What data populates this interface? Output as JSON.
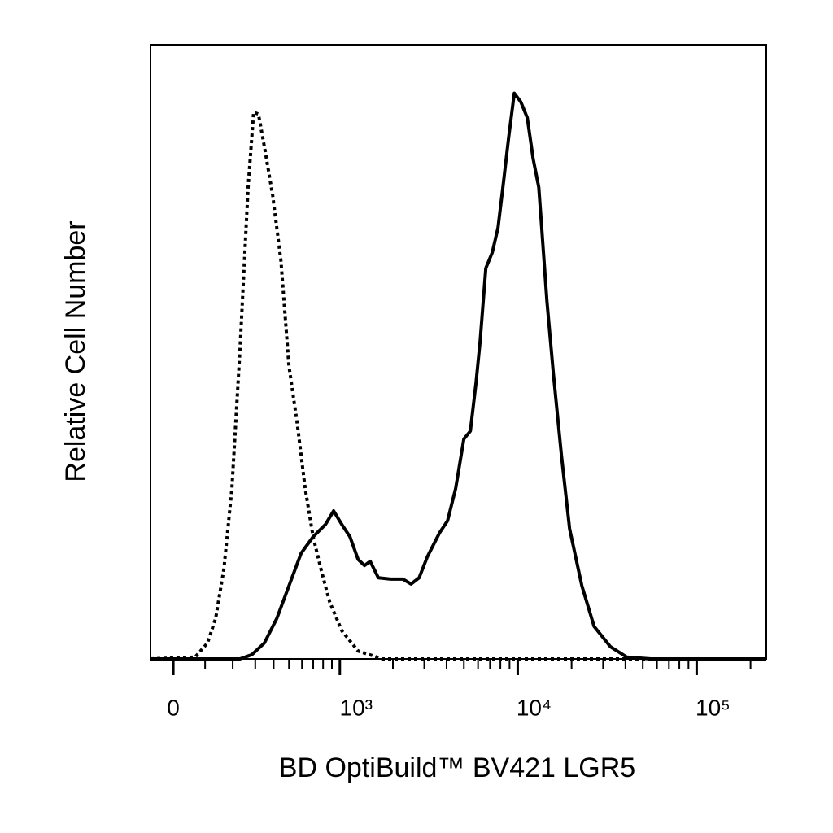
{
  "chart_data": {
    "type": "line",
    "xlabel": "BD OptiBuild™ BV421 LGR5",
    "ylabel": "Relative Cell Number",
    "xscale": "biexponential",
    "xlim": [
      -71,
      245000
    ],
    "xticks": [
      0,
      {
        "value": 1000,
        "label": "10³"
      },
      {
        "value": 10000,
        "label": "10⁴"
      },
      {
        "value": 100000,
        "label": "10⁵"
      }
    ],
    "ylim": [
      0,
      100
    ],
    "grid": false,
    "series": [
      {
        "color": "#000000",
        "line_style": "dotted",
        "x": [
          -71,
          68,
          108,
          136,
          166,
          197,
          230,
          266,
          292,
          316,
          347,
          394,
          445,
          500,
          561,
          627,
          699,
          778,
          873,
          1026,
          1271,
          1747,
          245000
        ],
        "values": [
          0,
          0.3,
          2.6,
          6.6,
          14.6,
          27.8,
          50.3,
          76.8,
          89.0,
          88.7,
          83.4,
          75.5,
          64.9,
          47.7,
          38.4,
          27.8,
          19.9,
          14.6,
          9.3,
          4.6,
          1.3,
          0,
          0
        ]
      },
      {
        "color": "#000000",
        "line_style": "solid",
        "x": [
          -71,
          230,
          284,
          347,
          419,
          500,
          593,
          699,
          826,
          921,
          1026,
          1142,
          1271,
          1383,
          1490,
          1656,
          1942,
          2273,
          2528,
          2806,
          3118,
          3649,
          4053,
          4501,
          4998,
          5436,
          5850,
          6164,
          6633,
          7211,
          7761,
          8263,
          8892,
          9568,
          10405,
          11315,
          12178,
          13104,
          13518,
          14551,
          15822,
          17564,
          19502,
          22824,
          26704,
          32939,
          40627,
          55597,
          245000
        ],
        "values": [
          0,
          0,
          0.7,
          2.6,
          6.6,
          11.9,
          17.2,
          19.9,
          21.9,
          24.1,
          21.9,
          19.9,
          16.2,
          15.2,
          15.9,
          13.2,
          13.0,
          13.0,
          12.2,
          13.2,
          16.6,
          20.5,
          22.5,
          27.8,
          35.8,
          37.1,
          45.0,
          51.7,
          63.6,
          66.2,
          70.2,
          76.8,
          84.8,
          92.1,
          90.7,
          88.1,
          81.5,
          76.8,
          71.5,
          58.3,
          46.4,
          33.1,
          21.2,
          11.9,
          5.3,
          2.0,
          0.3,
          0,
          0
        ]
      }
    ]
  }
}
